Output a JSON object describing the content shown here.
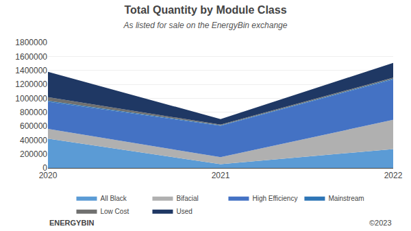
{
  "chart_data": {
    "type": "area",
    "title": "Total Quantity by Module Class",
    "subtitle": "As listed for sale on the EnergyBin exchange",
    "x": [
      2020,
      2021,
      2022
    ],
    "series": [
      {
        "name": "All Black",
        "color": "#5b9bd5",
        "values": [
          420000,
          55000,
          270000
        ]
      },
      {
        "name": "Bifacial",
        "color": "#b0b0b0",
        "values": [
          140000,
          100000,
          420000
        ]
      },
      {
        "name": "High Efficiency",
        "color": "#4472c4",
        "values": [
          390000,
          450000,
          580000
        ]
      },
      {
        "name": "Mainstream",
        "color": "#2e75b6",
        "values": [
          15000,
          8000,
          12000
        ]
      },
      {
        "name": "Low Cost",
        "color": "#70706f",
        "values": [
          50000,
          8000,
          15000
        ]
      },
      {
        "name": "Used",
        "color": "#1f3864",
        "values": [
          365000,
          80000,
          210000
        ]
      }
    ],
    "stacked": true,
    "xlim": [
      2020,
      2022
    ],
    "xticks": [
      2020,
      2021,
      2022
    ],
    "ylim": [
      0,
      1800000
    ],
    "yticks": [
      0,
      200000,
      400000,
      600000,
      800000,
      1000000,
      1200000,
      1400000,
      1600000,
      1800000
    ],
    "grid": "y",
    "legend": "bottom",
    "annotations": [
      "ENERGYBIN",
      "©2023"
    ]
  }
}
